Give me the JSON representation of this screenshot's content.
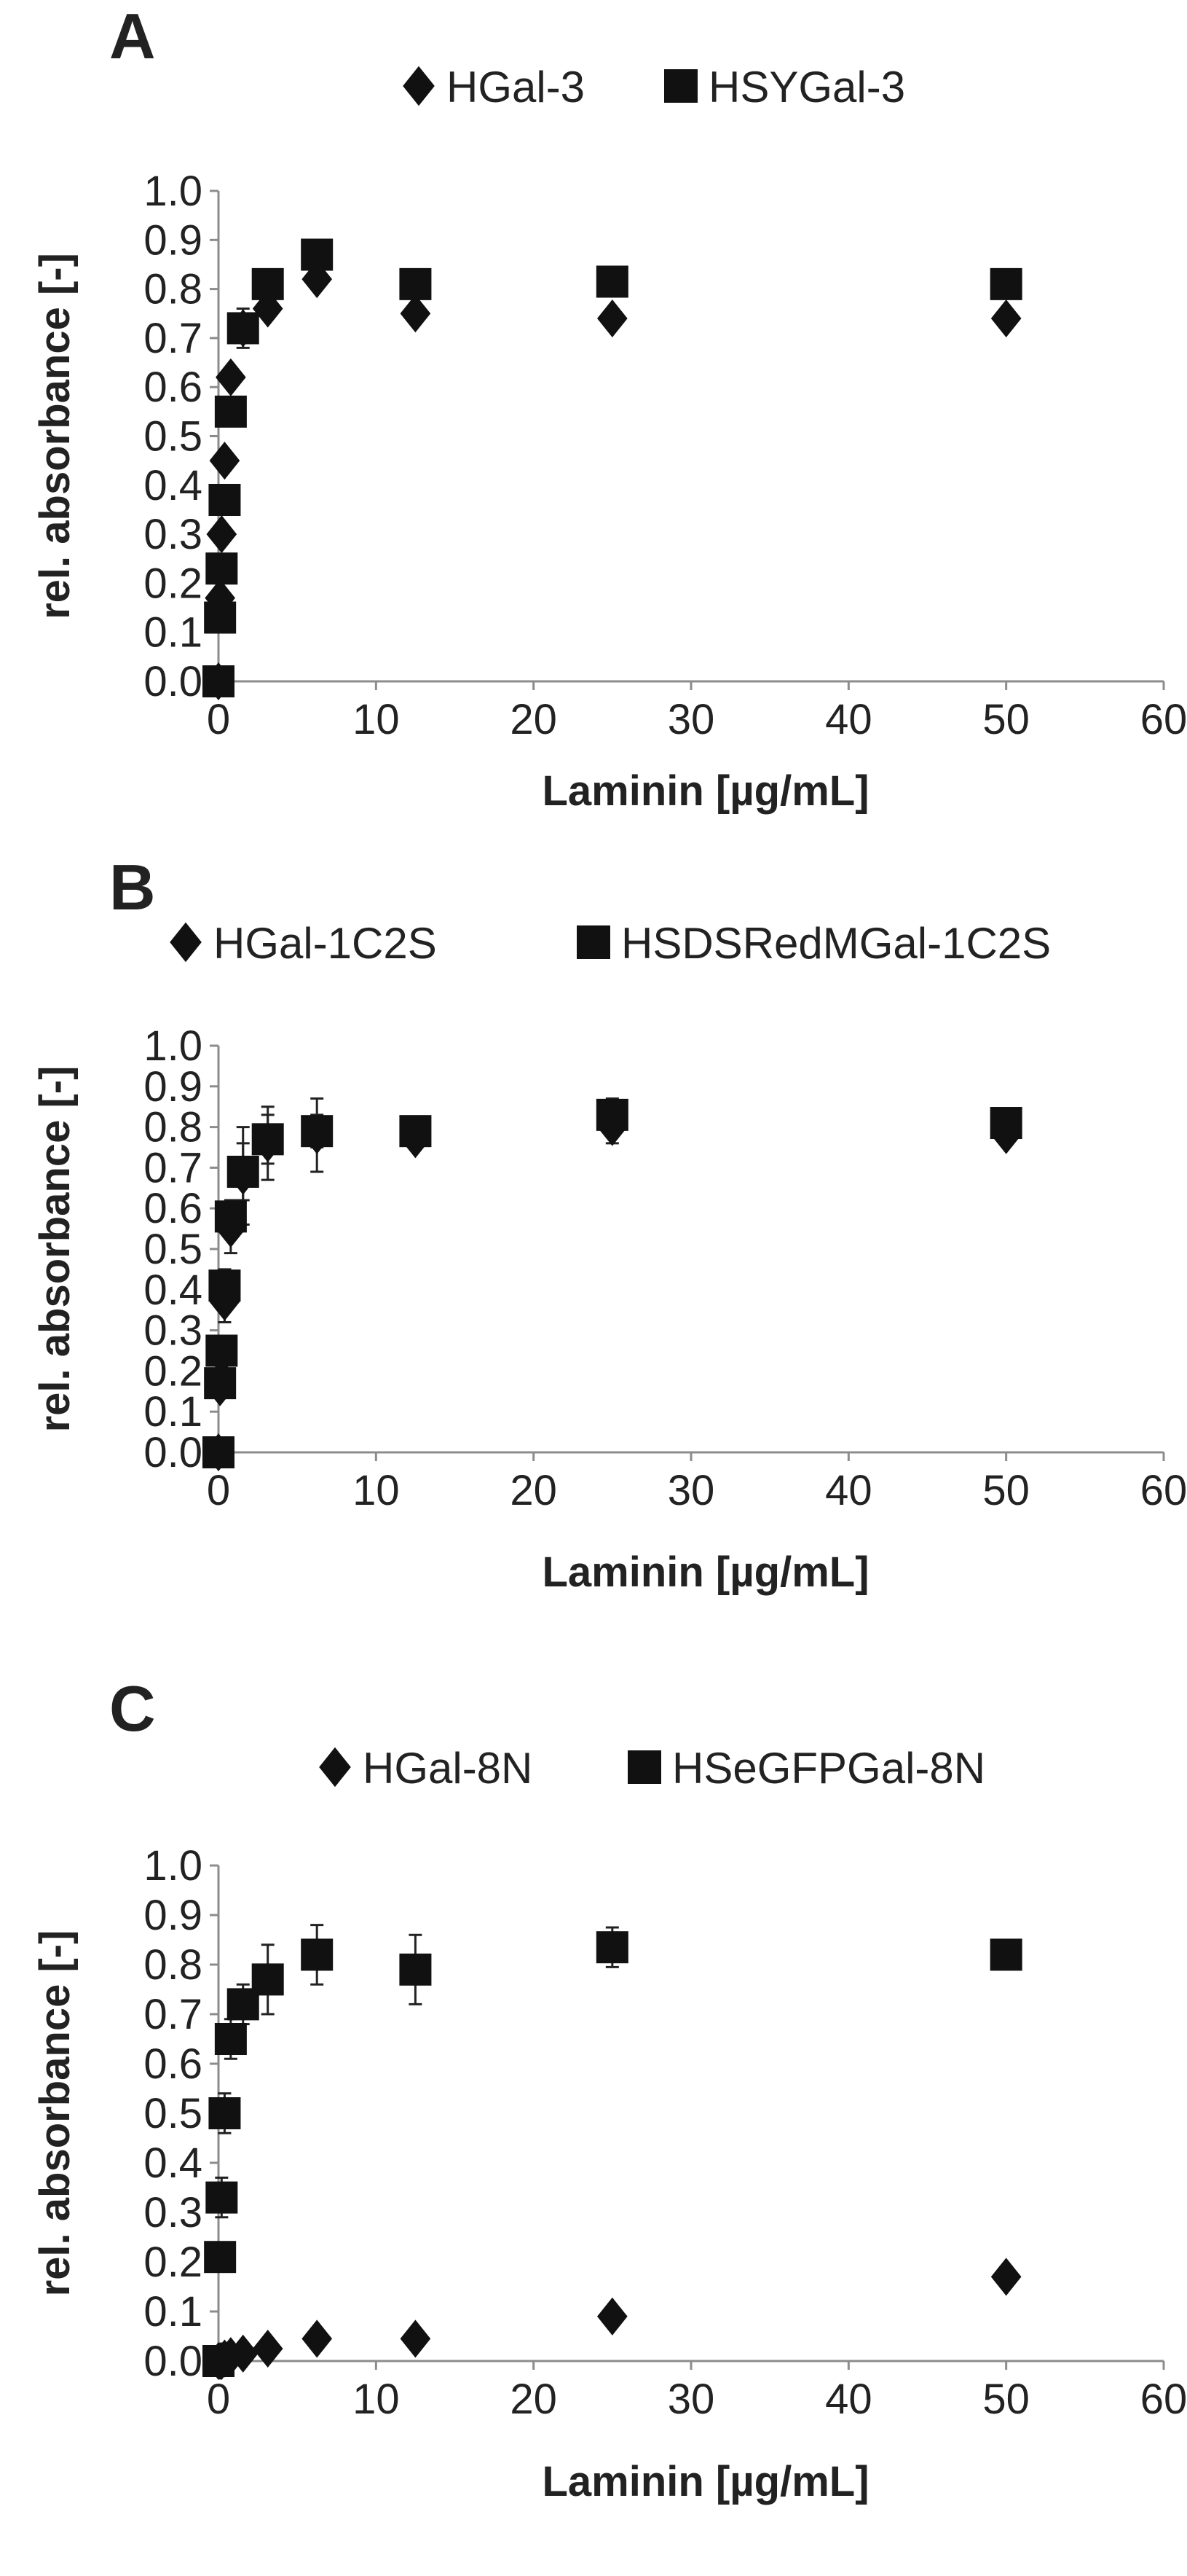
{
  "chart_data": [
    {
      "type": "scatter",
      "panel": "A",
      "xlabel": "Laminin   [µg/mL]",
      "ylabel": "rel. absorbance   [-]",
      "xlim": [
        0,
        60
      ],
      "ylim": [
        0,
        1.0
      ],
      "xticks": [
        "0",
        "10",
        "20",
        "30",
        "40",
        "50",
        "60"
      ],
      "yticks": [
        "0.0",
        "0.1",
        "0.2",
        "0.3",
        "0.4",
        "0.5",
        "0.6",
        "0.7",
        "0.8",
        "0.9",
        "1.0"
      ],
      "grid": false,
      "legend_position": "top",
      "series": [
        {
          "name": "HGal-3",
          "marker": "diamond",
          "color": "#111111",
          "x": [
            0,
            0.1,
            0.2,
            0.39,
            0.78,
            1.56,
            3.13,
            6.25,
            12.5,
            25,
            50
          ],
          "y": [
            0,
            0.17,
            0.3,
            0.45,
            0.62,
            0.72,
            0.76,
            0.82,
            0.75,
            0.74,
            0.74
          ],
          "err": [
            0,
            0.01,
            0.01,
            0.01,
            0.01,
            0.03,
            0.02,
            0.01,
            0.01,
            0.015,
            0.01
          ]
        },
        {
          "name": "HSYGal-3",
          "marker": "square",
          "color": "#111111",
          "x": [
            0,
            0.1,
            0.2,
            0.39,
            0.78,
            1.56,
            3.13,
            6.25,
            12.5,
            25,
            50
          ],
          "y": [
            0,
            0.13,
            0.23,
            0.37,
            0.55,
            0.72,
            0.81,
            0.87,
            0.81,
            0.815,
            0.81
          ],
          "err": [
            0,
            0.01,
            0.01,
            0.01,
            0.01,
            0.04,
            0.02,
            0.02,
            0.01,
            0.01,
            0.01
          ]
        }
      ]
    },
    {
      "type": "scatter",
      "panel": "B",
      "xlabel": "Laminin   [µg/mL]",
      "ylabel": "rel. absorbance   [-]",
      "xlim": [
        0,
        60
      ],
      "ylim": [
        0,
        1.0
      ],
      "xticks": [
        "0",
        "10",
        "20",
        "30",
        "40",
        "50",
        "60"
      ],
      "yticks": [
        "0.0",
        "0.1",
        "0.2",
        "0.3",
        "0.4",
        "0.5",
        "0.6",
        "0.7",
        "0.8",
        "0.9",
        "1.0"
      ],
      "grid": false,
      "legend_position": "top",
      "series": [
        {
          "name": "HGal-1C2S",
          "marker": "diamond",
          "color": "#111111",
          "x": [
            0,
            0.1,
            0.2,
            0.39,
            0.78,
            1.56,
            3.13,
            6.25,
            12.5,
            25,
            50
          ],
          "y": [
            0,
            0.16,
            0.24,
            0.37,
            0.55,
            0.68,
            0.76,
            0.78,
            0.77,
            0.8,
            0.78
          ],
          "err": [
            0,
            0.02,
            0.03,
            0.05,
            0.06,
            0.12,
            0.09,
            0.09,
            0.02,
            0.04,
            0.02
          ]
        },
        {
          "name": "HSDSRedMGal-1C2S",
          "marker": "square",
          "color": "#111111",
          "x": [
            0,
            0.1,
            0.2,
            0.39,
            0.78,
            1.56,
            3.13,
            6.25,
            12.5,
            25,
            50
          ],
          "y": [
            0,
            0.17,
            0.25,
            0.41,
            0.58,
            0.69,
            0.77,
            0.79,
            0.79,
            0.83,
            0.81
          ],
          "err": [
            0,
            0.02,
            0.03,
            0.04,
            0.04,
            0.07,
            0.06,
            0.04,
            0.02,
            0.04,
            0.02
          ]
        }
      ]
    },
    {
      "type": "scatter",
      "panel": "C",
      "xlabel": "Laminin   [µg/mL]",
      "ylabel": "rel. absorbance   [-]",
      "xlim": [
        0,
        60
      ],
      "ylim": [
        0,
        1.0
      ],
      "xticks": [
        "0",
        "10",
        "20",
        "30",
        "40",
        "50",
        "60"
      ],
      "yticks": [
        "0.0",
        "0.1",
        "0.2",
        "0.3",
        "0.4",
        "0.5",
        "0.6",
        "0.7",
        "0.8",
        "0.9",
        "1.0"
      ],
      "grid": false,
      "legend_position": "top",
      "series": [
        {
          "name": "HGal-8N",
          "marker": "diamond",
          "color": "#111111",
          "x": [
            0,
            0.1,
            0.2,
            0.39,
            0.78,
            1.56,
            3.13,
            6.25,
            12.5,
            25,
            50
          ],
          "y": [
            0,
            0,
            0,
            0.005,
            0.01,
            0.015,
            0.025,
            0.045,
            0.045,
            0.09,
            0.17
          ],
          "err": [
            0,
            0,
            0,
            0.005,
            0.005,
            0.01,
            0.01,
            0.02,
            0.01,
            0.01,
            0.02
          ]
        },
        {
          "name": "HSeGFPGal-8N",
          "marker": "square",
          "color": "#111111",
          "x": [
            0,
            0.1,
            0.2,
            0.39,
            0.78,
            1.56,
            3.13,
            6.25,
            12.5,
            25,
            50
          ],
          "y": [
            0,
            0.21,
            0.33,
            0.5,
            0.65,
            0.72,
            0.77,
            0.82,
            0.79,
            0.835,
            0.82
          ],
          "err": [
            0,
            0.02,
            0.04,
            0.04,
            0.04,
            0.04,
            0.07,
            0.06,
            0.07,
            0.04,
            0.01
          ]
        }
      ]
    }
  ]
}
